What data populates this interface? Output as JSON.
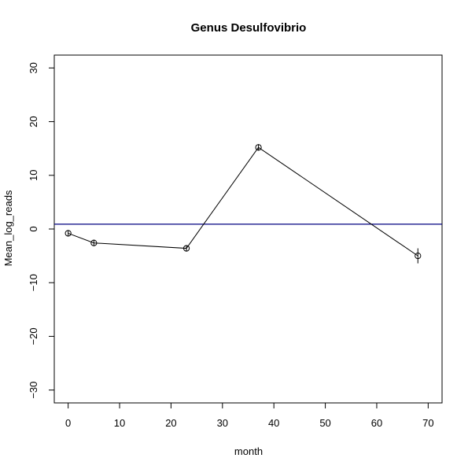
{
  "chart_data": {
    "type": "line",
    "title": "Genus Desulfovibrio",
    "xlabel": "month",
    "ylabel": "Mean_log_reads",
    "xlim": [
      -2.7,
      72.7
    ],
    "ylim": [
      -32.4,
      32.4
    ],
    "xticks": [
      0,
      10,
      20,
      30,
      40,
      50,
      60,
      70
    ],
    "yticks": [
      -30,
      -20,
      -10,
      0,
      10,
      20,
      30
    ],
    "grid": false,
    "legend": "none",
    "series": [
      {
        "color": "#000000",
        "marker": "open-circle",
        "points": [
          {
            "x": 0,
            "y": -0.8,
            "err_low": -1.4,
            "err_high": -0.2
          },
          {
            "x": 5,
            "y": -2.6,
            "err_low": -3.1,
            "err_high": -2.0
          },
          {
            "x": 23,
            "y": -3.6,
            "err_low": -4.2,
            "err_high": -3.0
          },
          {
            "x": 37,
            "y": 15.2,
            "err_low": 14.6,
            "err_high": 15.8
          },
          {
            "x": 68,
            "y": -5.0,
            "err_low": -6.4,
            "err_high": -3.6
          }
        ]
      }
    ],
    "reference_lines": [
      {
        "orientation": "horizontal",
        "y": 0.9,
        "color": "#000080"
      }
    ]
  }
}
